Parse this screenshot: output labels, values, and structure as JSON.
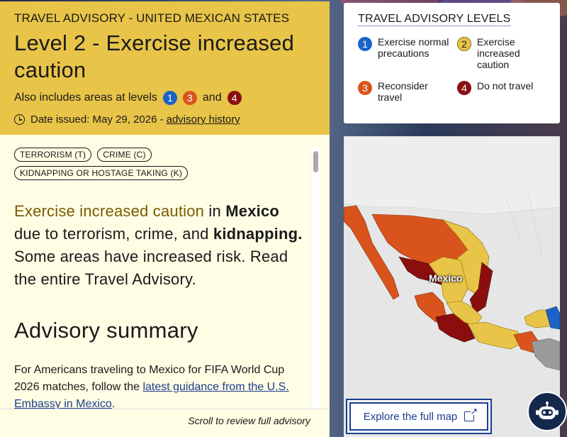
{
  "advisory": {
    "kicker": "TRAVEL ADVISORY - UNITED MEXICAN STATES",
    "title": "Level 2 - Exercise increased caution",
    "also_includes_prefix": "Also includes areas at levels",
    "also_levels": [
      "1",
      "3",
      "4"
    ],
    "and_word": "and",
    "date_issued": "Date issued: May 29, 2026 -",
    "history_link": "advisory history",
    "tags": [
      "TERRORISM (T)",
      "CRIME (C)",
      "KIDNAPPING OR HOSTAGE TAKING (K)"
    ],
    "lead": {
      "highlight": "Exercise increased caution",
      "in": " in ",
      "country": "Mexico",
      "due_to": " due to terrorism, crime, and ",
      "kidnapping": "kidnapping.",
      "rest": " Some areas have increased risk. Read the entire Travel Advisory."
    },
    "summary_heading": "Advisory summary",
    "summary_para_start": "For Americans traveling to Mexico for FIFA World Cup 2026 matches, follow the ",
    "summary_link": "latest guidance from the U.S. Embassy in Mexico",
    "summary_para_end": ".",
    "scroll_hint": "Scroll to review full advisory"
  },
  "levels_card": {
    "heading": "TRAVEL ADVISORY LEVELS",
    "levels": [
      {
        "num": "1",
        "label": "Exercise normal precautions"
      },
      {
        "num": "2",
        "label": "Exercise increased caution"
      },
      {
        "num": "3",
        "label": "Reconsider travel"
      },
      {
        "num": "4",
        "label": "Do not travel"
      }
    ]
  },
  "map": {
    "country_label": "Mexico",
    "explore_button": "Explore the full map",
    "colors": {
      "level1": "#1b64c6",
      "level2": "#e8c448",
      "level3": "#d9541c",
      "level4": "#8b0e0e",
      "other": "#9a9a9a"
    }
  }
}
